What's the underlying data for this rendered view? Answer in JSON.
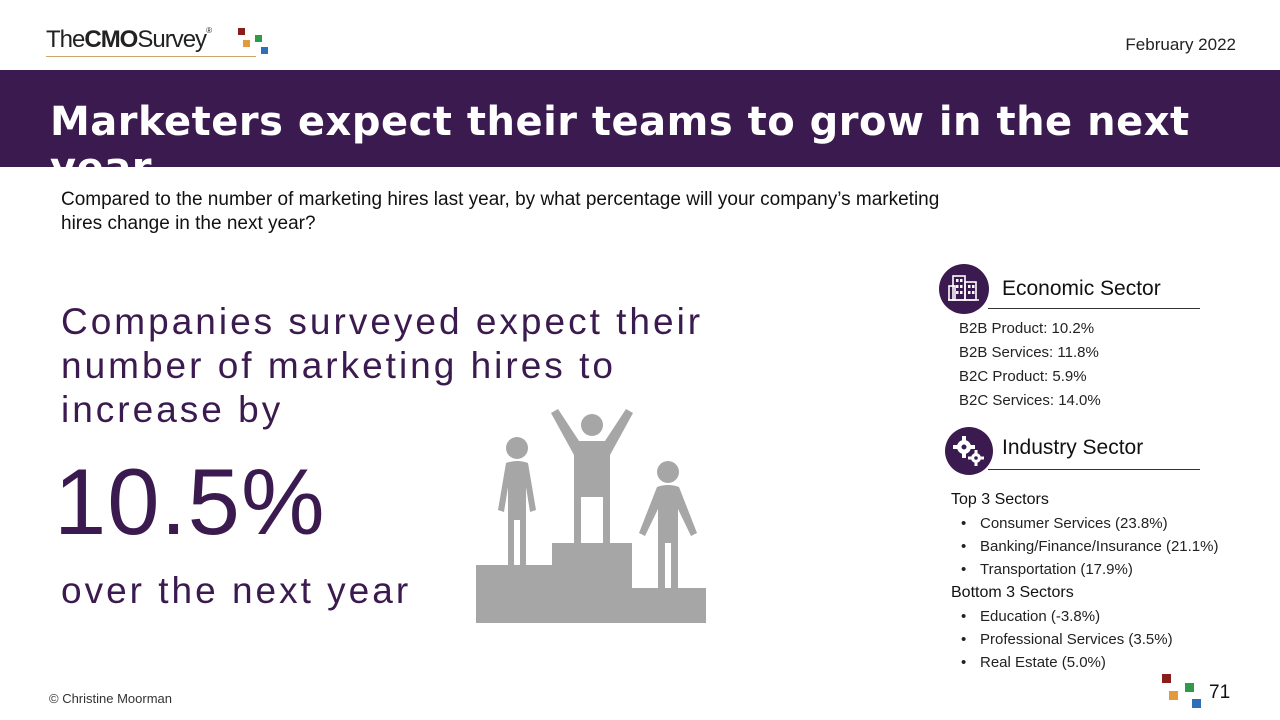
{
  "header": {
    "logo": {
      "the": "The",
      "cmo": "CMO",
      "survey": "Survey",
      "reg": "®"
    },
    "date": "February 2022"
  },
  "banner": {
    "title": "Marketers expect their teams to grow in the next year"
  },
  "question": "Compared to the number of marketing hires last year, by what percentage will your company’s marketing hires change in the next year?",
  "headline": {
    "lead": "Companies surveyed expect their number of marketing hires to increase by",
    "value": "10.5%",
    "tail": "over the next year"
  },
  "economic_sector": {
    "icon": "building-icon",
    "title": "Economic Sector",
    "items": [
      "B2B Product: 10.2%",
      "B2B Services: 11.8%",
      "B2C Product: 5.9%",
      "B2C Services: 14.0%"
    ]
  },
  "industry_sector": {
    "icon": "gears-icon",
    "title": "Industry Sector",
    "top_heading": "Top 3 Sectors",
    "top": [
      "Consumer Services (23.8%)",
      "Banking/Finance/Insurance (21.1%)",
      "Transportation (17.9%)"
    ],
    "bottom_heading": "Bottom 3 Sectors",
    "bottom": [
      "Education (-3.8%)",
      "Professional Services (3.5%)",
      "Real Estate (5.0%)"
    ],
    "bullet": "•"
  },
  "footer": {
    "copyright": "© Christine Moorman",
    "page_number": "71"
  },
  "colors": {
    "brand_purple": "#3b1a4f",
    "podium_gray": "#a6a6a6",
    "logo_red": "#8b1c1c",
    "logo_orange": "#e39a3c",
    "logo_green": "#2e9b4c",
    "logo_blue": "#2e6fb5"
  }
}
